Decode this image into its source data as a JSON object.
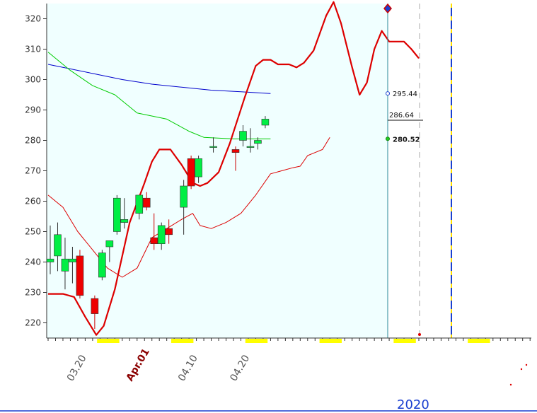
{
  "chart_data": {
    "type": "candlestick",
    "y_axis": {
      "min": 215,
      "max": 325,
      "ticks": [
        220,
        230,
        240,
        250,
        260,
        270,
        280,
        290,
        300,
        310,
        320
      ]
    },
    "x_tick_labels": [
      {
        "text": "03.20",
        "slot": 2.5,
        "emphasis": false
      },
      {
        "text": "Apr.01",
        "slot": 10.5,
        "emphasis": true
      },
      {
        "text": "04.10",
        "slot": 17.5,
        "emphasis": false
      },
      {
        "text": "04.20",
        "slot": 24.5,
        "emphasis": false
      }
    ],
    "year_label": "2020",
    "candles": [
      {
        "open": 240,
        "high": 252,
        "low": 236,
        "close": 241
      },
      {
        "open": 242,
        "high": 253,
        "low": 237,
        "close": 249
      },
      {
        "open": 237,
        "high": 248,
        "low": 231,
        "close": 241
      },
      {
        "open": 240,
        "high": 245,
        "low": 233,
        "close": 241
      },
      {
        "open": 242,
        "high": 244,
        "low": 228,
        "close": 229
      },
      {
        "open": 228,
        "high": 229,
        "low": 218,
        "close": 223
      },
      {
        "open": 235,
        "high": 244,
        "low": 234,
        "close": 243
      },
      {
        "open": 245,
        "high": 247,
        "low": 240,
        "close": 247
      },
      {
        "open": 250,
        "high": 262,
        "low": 249,
        "close": 261
      },
      {
        "open": 253,
        "high": 261,
        "low": 251,
        "close": 254
      },
      {
        "open": 256,
        "high": 262,
        "low": 254,
        "close": 262
      },
      {
        "open": 261,
        "high": 263,
        "low": 257,
        "close": 258
      },
      {
        "open": 248,
        "high": 256,
        "low": 244,
        "close": 246
      },
      {
        "open": 246,
        "high": 253,
        "low": 244,
        "close": 252
      },
      {
        "open": 251,
        "high": 254,
        "low": 246,
        "close": 249
      },
      {
        "open": 258,
        "high": 267,
        "low": 249,
        "close": 265
      },
      {
        "open": 274,
        "high": 275,
        "low": 264,
        "close": 265
      },
      {
        "open": 268,
        "high": 275,
        "low": 266,
        "close": 274
      },
      {
        "open": 278,
        "high": 281,
        "low": 276,
        "close": 278
      },
      {
        "open": 277,
        "high": 278,
        "low": 270,
        "close": 276
      },
      {
        "open": 280,
        "high": 285,
        "low": 278,
        "close": 283
      },
      {
        "open": 278,
        "high": 284,
        "low": 276,
        "close": 278
      },
      {
        "open": 279,
        "high": 281,
        "low": 277,
        "close": 280
      },
      {
        "open": 285,
        "high": 288,
        "low": 284,
        "close": 287
      }
    ],
    "candle_slots": [
      0,
      1,
      2,
      3,
      4,
      6,
      7,
      8,
      9,
      10,
      12,
      13,
      14,
      15,
      16,
      18,
      19,
      20,
      22,
      25,
      26,
      27,
      28,
      29
    ],
    "series": [
      {
        "color": "#0000cc",
        "width": 1,
        "points": [
          [
            0,
            305
          ],
          [
            3,
            303.5
          ],
          [
            6,
            302
          ],
          [
            10,
            300
          ],
          [
            14,
            298.5
          ],
          [
            18,
            297.5
          ],
          [
            22,
            296.5
          ],
          [
            26,
            296
          ],
          [
            30,
            295.4
          ]
        ]
      },
      {
        "color": "#00cc00",
        "width": 1,
        "points": [
          [
            0,
            309
          ],
          [
            3,
            303
          ],
          [
            6,
            298
          ],
          [
            9,
            295
          ],
          [
            12,
            289
          ],
          [
            16,
            287
          ],
          [
            19,
            283
          ],
          [
            21,
            281
          ],
          [
            25,
            280.5
          ],
          [
            30,
            280.5
          ]
        ]
      },
      {
        "color": "#dd0000",
        "width": 2.2,
        "points": [
          [
            0,
            229.5
          ],
          [
            2,
            229.5
          ],
          [
            3.5,
            228.5
          ],
          [
            5,
            222
          ],
          [
            6.5,
            216
          ],
          [
            7.5,
            219
          ],
          [
            9,
            231
          ],
          [
            11,
            253
          ],
          [
            13,
            266
          ],
          [
            14,
            273
          ],
          [
            15,
            277
          ],
          [
            16.5,
            277
          ],
          [
            18,
            272
          ],
          [
            19.5,
            266
          ],
          [
            20.5,
            265
          ],
          [
            21.5,
            266
          ],
          [
            23,
            269.5
          ],
          [
            24.5,
            279
          ],
          [
            26.5,
            294
          ],
          [
            28,
            304.5
          ],
          [
            29,
            306.5
          ],
          [
            30,
            306.5
          ],
          [
            31,
            305
          ],
          [
            32.5,
            305
          ],
          [
            33.5,
            304
          ],
          [
            34.5,
            305.5
          ],
          [
            35.8,
            309.5
          ],
          [
            37.5,
            321
          ],
          [
            38.5,
            325.5
          ],
          [
            39.5,
            318.5
          ],
          [
            41,
            304
          ],
          [
            42,
            295
          ],
          [
            43,
            299
          ],
          [
            44,
            310
          ],
          [
            45,
            316
          ],
          [
            46,
            312.5
          ],
          [
            47,
            312.5
          ],
          [
            48,
            312.5
          ],
          [
            49,
            310
          ],
          [
            50,
            307
          ]
        ]
      },
      {
        "color": "#dd0000",
        "width": 1,
        "points": [
          [
            0,
            262
          ],
          [
            2,
            258
          ],
          [
            4,
            250
          ],
          [
            6,
            244
          ],
          [
            8,
            238
          ],
          [
            10,
            235
          ],
          [
            12,
            238
          ],
          [
            14,
            248
          ],
          [
            16,
            251
          ],
          [
            18,
            254
          ],
          [
            19.5,
            256
          ],
          [
            20.5,
            252
          ],
          [
            22,
            251
          ],
          [
            24,
            253
          ],
          [
            26,
            256
          ],
          [
            28,
            262
          ],
          [
            30,
            269
          ],
          [
            31.5,
            270
          ],
          [
            33,
            271
          ],
          [
            34,
            271.5
          ],
          [
            35,
            275
          ],
          [
            36,
            276
          ],
          [
            37,
            277
          ],
          [
            38,
            281
          ]
        ]
      }
    ],
    "current_price_line": {
      "value": 286.64,
      "label": "286.64"
    },
    "value_labels": [
      {
        "text": "295.44",
        "value": 295.44,
        "bold": false
      },
      {
        "text": "280.52",
        "value": 280.52,
        "bold": true
      }
    ],
    "marker_top": {
      "color_outer": "#cc0000",
      "color_inner": "#1a3fd0"
    },
    "colors": {
      "plot_bg": "#f0ffff",
      "up": "#00ee44",
      "down": "#ee0000",
      "future_marker": "#ffe000",
      "axis_marker": "#ffff00"
    }
  }
}
